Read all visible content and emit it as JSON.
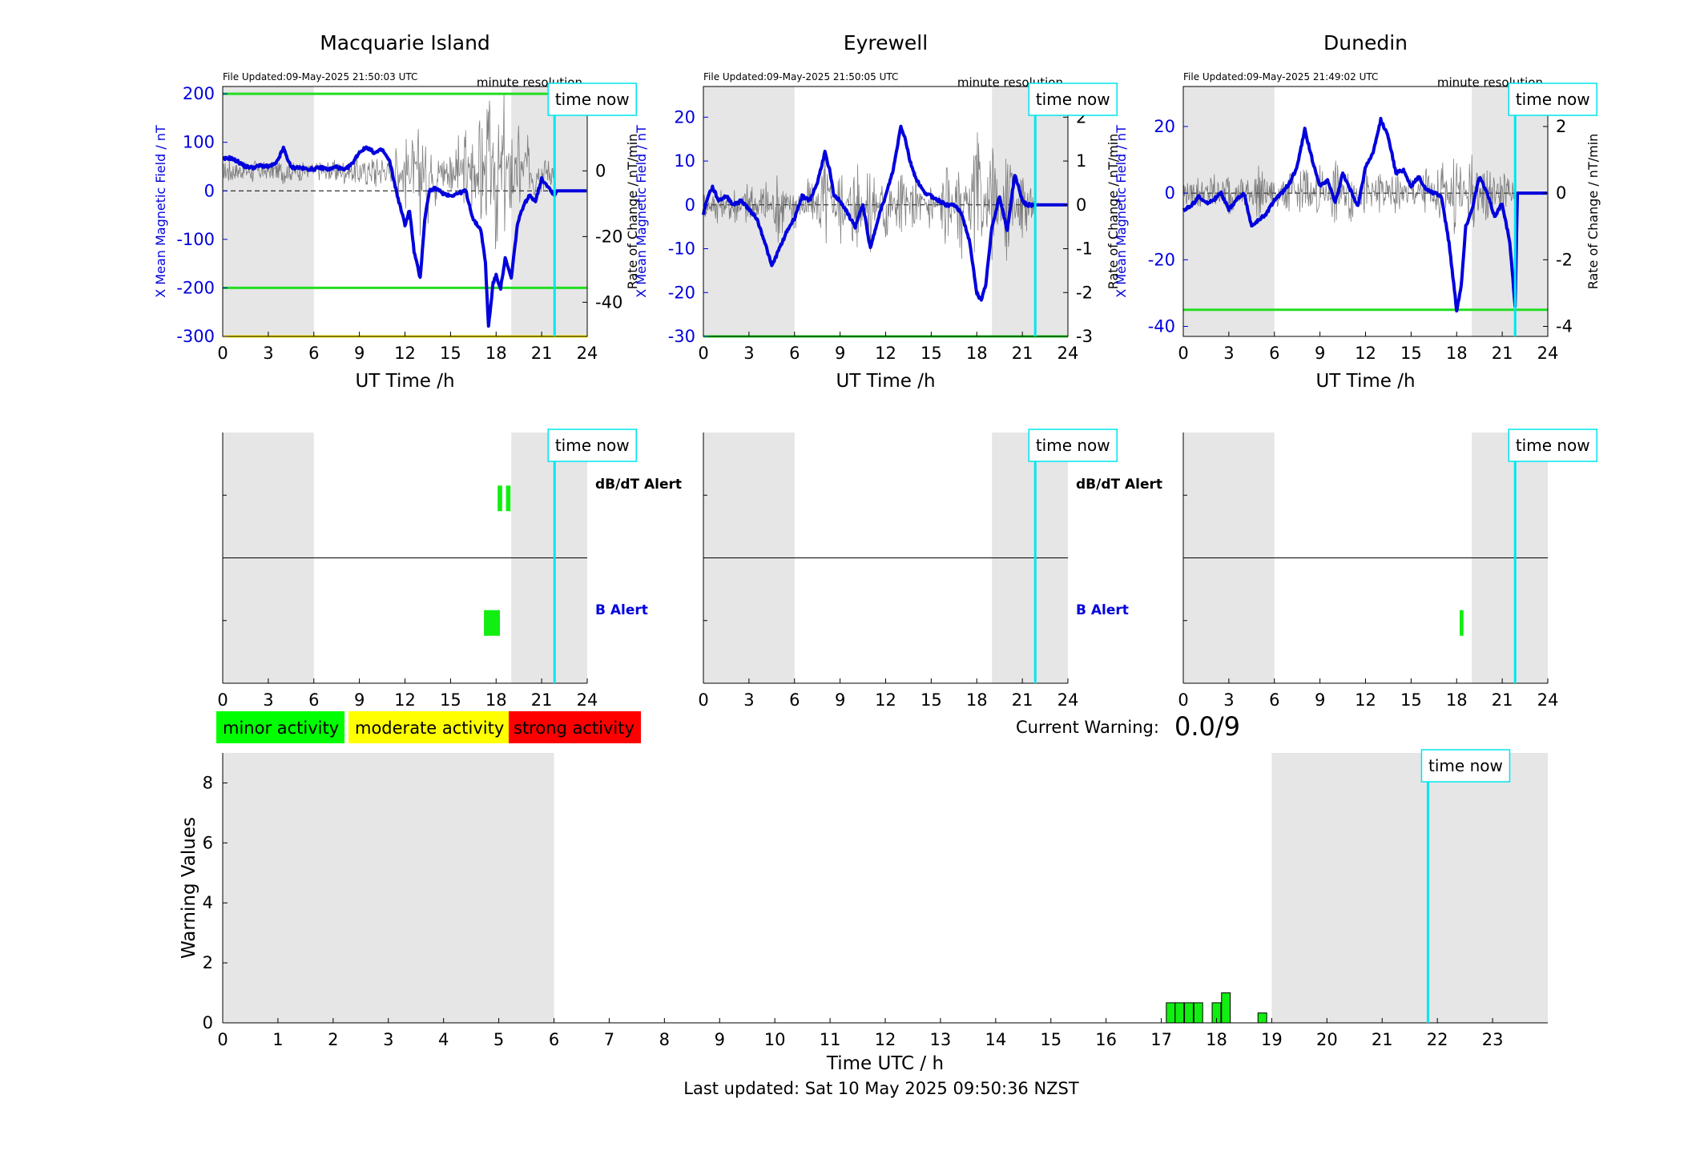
{
  "figure": {
    "legend": {
      "minor": {
        "label": "minor activity",
        "color": "#00ff00"
      },
      "moderate": {
        "label": "moderate activity",
        "color": "#ffff00"
      },
      "strong": {
        "label": "strong activity",
        "color": "#ff0000"
      }
    },
    "current_warning_label": "Current Warning:",
    "current_warning_value": "0.0/9",
    "last_updated": "Last updated: Sat 10 May 2025 09:50:36 NZST",
    "time_now_label": "time now",
    "colors": {
      "field": "#0000dd",
      "rate": "#555555",
      "threshold": "#22dd22",
      "time_now": "#00e5ee",
      "shade": "#e6e6e6",
      "bar": "#11ee11"
    }
  },
  "chart_data": [
    {
      "panel": "Macquarie Island",
      "type": "line",
      "title": "Macquarie Island",
      "file_updated": "File Updated:09-May-2025 21:50:03 UTC",
      "resolution": "minute resolution",
      "xlabel": "UT Time /h",
      "ylabel": "X Mean Magnetic Field / nT",
      "ylabel_right": "Rate of Change / nT/min",
      "xlim": [
        0,
        24
      ],
      "xticks": [
        0,
        3,
        6,
        9,
        12,
        15,
        18,
        21,
        24
      ],
      "ylim": [
        -300,
        215
      ],
      "yticks": [
        200,
        100,
        0,
        -100,
        -200,
        -300
      ],
      "ylim_right": [
        -50.4,
        25.7
      ],
      "yticks_right": [
        20,
        0,
        -20,
        -40
      ],
      "thresholds": [
        {
          "y": 200,
          "color": "#22dd22"
        },
        {
          "y": -200,
          "color": "#22dd22"
        },
        {
          "y": -300,
          "color": "#ffee00"
        }
      ],
      "shaded": [
        [
          0,
          6
        ],
        [
          19,
          24
        ]
      ],
      "time_now": 21.85,
      "series": [
        {
          "role": "field",
          "x": [
            0,
            0.5,
            1,
            1.5,
            2,
            2.5,
            3,
            3.5,
            4,
            4.5,
            5,
            5.5,
            6,
            6.5,
            7,
            7.5,
            8,
            8.5,
            9,
            9.5,
            10,
            10.5,
            11,
            11.5,
            12,
            12.3,
            12.6,
            13,
            13.3,
            13.6,
            14,
            14.5,
            15,
            15.5,
            16,
            16.5,
            17,
            17.3,
            17.5,
            17.8,
            18,
            18.3,
            18.6,
            19,
            19.4,
            19.8,
            20.2,
            20.6,
            21,
            21.4,
            21.85,
            22,
            22.5,
            23,
            23.5,
            24
          ],
          "y": [
            65,
            68,
            60,
            50,
            48,
            52,
            50,
            55,
            88,
            48,
            48,
            45,
            45,
            48,
            44,
            50,
            42,
            55,
            80,
            90,
            78,
            85,
            60,
            -10,
            -70,
            -40,
            -125,
            -180,
            -60,
            0,
            5,
            -5,
            -10,
            -5,
            0,
            -60,
            -80,
            -150,
            -280,
            -190,
            -175,
            -200,
            -140,
            -180,
            -70,
            -30,
            -10,
            -20,
            25,
            10,
            -10,
            0,
            0,
            0,
            0,
            0
          ]
        },
        {
          "role": "rate",
          "x": [
            0,
            0.5,
            1,
            1.5,
            2,
            2.5,
            3,
            3.5,
            4,
            4.5,
            5,
            5.5,
            6,
            6.5,
            7,
            7.5,
            8,
            8.5,
            9,
            9.5,
            10,
            10.5,
            11,
            11.5,
            12,
            12.5,
            13,
            13.5,
            14,
            14.5,
            15,
            15.5,
            16,
            16.5,
            17,
            17.5,
            18,
            18.5,
            19,
            19.5,
            20,
            20.5,
            21,
            21.5,
            21.85
          ],
          "y": [
            0,
            2,
            -1,
            1,
            -2,
            1,
            0,
            -1,
            2,
            -1,
            1,
            0,
            0,
            1,
            -1,
            2,
            -2,
            1,
            3,
            -3,
            5,
            -4,
            3,
            -8,
            12,
            -10,
            18,
            -15,
            10,
            -6,
            8,
            -10,
            14,
            -18,
            22,
            -28,
            30,
            -25,
            20,
            -15,
            12,
            -8,
            6,
            -3,
            0
          ]
        }
      ]
    },
    {
      "panel": "Eyrewell",
      "type": "line",
      "title": "Eyrewell",
      "file_updated": "File Updated:09-May-2025 21:50:05 UTC",
      "resolution": "minute resolution",
      "xlabel": "UT Time /h",
      "ylabel": "X Mean Magnetic Field / nT",
      "ylabel_right": "Rate of Change / nT/min",
      "xlim": [
        0,
        24
      ],
      "xticks": [
        0,
        3,
        6,
        9,
        12,
        15,
        18,
        21,
        24
      ],
      "ylim": [
        -30,
        27
      ],
      "yticks": [
        20,
        10,
        0,
        -10,
        -20,
        -30
      ],
      "ylim_right": [
        -3,
        2.7
      ],
      "yticks_right": [
        2,
        1,
        0,
        -1,
        -2,
        -3
      ],
      "thresholds": [
        {
          "y": -30,
          "color": "#22dd22"
        }
      ],
      "shaded": [
        [
          0,
          6
        ],
        [
          19,
          24
        ]
      ],
      "time_now": 21.85,
      "series": [
        {
          "role": "field",
          "x": [
            0,
            0.3,
            0.6,
            1,
            1.5,
            2,
            2.5,
            3,
            3.5,
            4,
            4.5,
            5,
            5.5,
            6,
            6.5,
            7,
            7.5,
            8,
            8.3,
            8.6,
            9,
            9.5,
            10,
            10.5,
            11,
            11.5,
            12,
            12.5,
            13,
            13.3,
            13.6,
            14,
            14.5,
            15,
            15.5,
            16,
            16.5,
            17,
            17.5,
            18,
            18.3,
            18.6,
            19,
            19.5,
            20,
            20.5,
            21,
            21.3,
            21.85,
            22,
            23,
            24
          ],
          "y": [
            -2,
            2,
            4,
            1,
            2,
            0,
            1,
            -1,
            -3,
            -8,
            -14,
            -10,
            -6,
            -3,
            2,
            1,
            5,
            12,
            8,
            2,
            1,
            -2,
            -5,
            0,
            -10,
            -3,
            2,
            8,
            18,
            15,
            10,
            6,
            3,
            2,
            1,
            0,
            0,
            -2,
            -8,
            -20,
            -22,
            -18,
            -5,
            2,
            -6,
            7,
            1,
            0,
            0,
            0,
            0,
            0
          ]
        },
        {
          "role": "rate",
          "x": [
            0,
            1,
            2,
            3,
            4,
            5,
            6,
            7,
            8,
            9,
            10,
            11,
            12,
            13,
            14,
            15,
            16,
            17,
            18,
            19,
            20,
            21,
            21.85
          ],
          "y": [
            0.2,
            -0.3,
            0.4,
            -0.5,
            0.6,
            -0.8,
            0.5,
            -0.6,
            1.1,
            -0.9,
            1.2,
            -1.0,
            0.9,
            -0.8,
            0.7,
            -0.6,
            0.9,
            -1.1,
            1.6,
            -1.3,
            1.2,
            -0.7,
            0
          ]
        }
      ]
    },
    {
      "panel": "Dunedin",
      "type": "line",
      "title": "Dunedin",
      "file_updated": "File Updated:09-May-2025 21:49:02 UTC",
      "resolution": "minute resolution",
      "xlabel": "UT Time /h",
      "ylabel": "X Mean Magnetic Field / nT",
      "ylabel_right": "Rate of Change / nT/min",
      "xlim": [
        0,
        24
      ],
      "xticks": [
        0,
        3,
        6,
        9,
        12,
        15,
        18,
        21,
        24
      ],
      "ylim": [
        -43,
        32
      ],
      "yticks": [
        20,
        0,
        -20,
        -40
      ],
      "ylim_right": [
        -4.3,
        3.2
      ],
      "yticks_right": [
        2,
        0,
        -2,
        -4
      ],
      "thresholds": [
        {
          "y": -35,
          "color": "#22dd22"
        }
      ],
      "shaded": [
        [
          0,
          6
        ],
        [
          19,
          24
        ]
      ],
      "time_now": 21.85,
      "series": [
        {
          "role": "field",
          "x": [
            0,
            0.5,
            1,
            1.5,
            2,
            2.5,
            3,
            3.5,
            4,
            4.5,
            5,
            5.5,
            6,
            6.5,
            7,
            7.5,
            8,
            8.5,
            9,
            9.5,
            10,
            10.5,
            11,
            11.5,
            12,
            12.5,
            13,
            13.5,
            14,
            14.5,
            15,
            15.5,
            16,
            16.5,
            17,
            17.5,
            18,
            18.3,
            18.6,
            19,
            19.5,
            20,
            20.5,
            21,
            21.5,
            21.85,
            22,
            23,
            24
          ],
          "y": [
            -5,
            -4,
            -1,
            -3,
            -2,
            0,
            -5,
            -2,
            0,
            -10,
            -8,
            -6,
            -2,
            0,
            3,
            8,
            19,
            10,
            2,
            4,
            -3,
            6,
            1,
            -4,
            8,
            12,
            22,
            17,
            6,
            7,
            2,
            5,
            1,
            0,
            -1,
            -15,
            -35,
            -28,
            -10,
            -5,
            5,
            0,
            -7,
            -3,
            -15,
            -34,
            0,
            0,
            0
          ]
        },
        {
          "role": "rate",
          "x": [
            0,
            1,
            2,
            3,
            4,
            5,
            6,
            7,
            8,
            9,
            10,
            11,
            12,
            13,
            14,
            15,
            16,
            17,
            18,
            19,
            20,
            21,
            21.85
          ],
          "y": [
            0.3,
            -0.4,
            0.5,
            -0.6,
            0.5,
            -0.7,
            0.4,
            -0.5,
            0.8,
            -0.7,
            0.9,
            -0.8,
            0.7,
            -0.6,
            0.6,
            -0.5,
            0.7,
            -0.9,
            1.4,
            -1.2,
            1.0,
            -0.6,
            0
          ]
        }
      ]
    },
    {
      "panel": "Macquarie Island alerts",
      "type": "bar",
      "xlim": [
        0,
        24
      ],
      "xticks": [
        0,
        3,
        6,
        9,
        12,
        15,
        18,
        21,
        24
      ],
      "shaded": [
        [
          0,
          6
        ],
        [
          19,
          24
        ]
      ],
      "time_now": 21.85,
      "row_labels": {
        "dbdt": "dB/dT Alert",
        "b": "B Alert"
      },
      "dbdt_alerts": [
        [
          18.1,
          18.4
        ],
        [
          18.65,
          18.95
        ]
      ],
      "b_alerts": [
        [
          17.2,
          18.25
        ]
      ]
    },
    {
      "panel": "Eyrewell alerts",
      "type": "bar",
      "xlim": [
        0,
        24
      ],
      "xticks": [
        0,
        3,
        6,
        9,
        12,
        15,
        18,
        21,
        24
      ],
      "shaded": [
        [
          0,
          6
        ],
        [
          19,
          24
        ]
      ],
      "time_now": 21.85,
      "row_labels": {
        "dbdt": "dB/dT Alert",
        "b": "B Alert"
      },
      "dbdt_alerts": [],
      "b_alerts": []
    },
    {
      "panel": "Dunedin alerts",
      "type": "bar",
      "xlim": [
        0,
        24
      ],
      "xticks": [
        0,
        3,
        6,
        9,
        12,
        15,
        18,
        21,
        24
      ],
      "shaded": [
        [
          0,
          6
        ],
        [
          19,
          24
        ]
      ],
      "time_now": 21.85,
      "row_labels": {
        "dbdt": "",
        "b": ""
      },
      "dbdt_alerts": [],
      "b_alerts": [
        [
          18.2,
          18.45
        ]
      ]
    },
    {
      "panel": "Warning values",
      "type": "bar",
      "xlabel": "Time UTC / h",
      "ylabel": "Warning Values",
      "xlim": [
        0,
        24
      ],
      "xticks": [
        0,
        1,
        2,
        3,
        4,
        5,
        6,
        7,
        8,
        9,
        10,
        11,
        12,
        13,
        14,
        15,
        16,
        17,
        18,
        19,
        20,
        21,
        22,
        23
      ],
      "ylim": [
        0,
        9
      ],
      "yticks": [
        0,
        2,
        4,
        6,
        8
      ],
      "shaded": [
        [
          0,
          6
        ],
        [
          19,
          24
        ]
      ],
      "time_now": 21.83,
      "bars": [
        {
          "x": 17.17,
          "value": 0.67
        },
        {
          "x": 17.33,
          "value": 0.67
        },
        {
          "x": 17.5,
          "value": 0.67
        },
        {
          "x": 17.67,
          "value": 0.67
        },
        {
          "x": 18.0,
          "value": 0.67
        },
        {
          "x": 18.17,
          "value": 1.0
        },
        {
          "x": 18.83,
          "value": 0.33
        }
      ]
    }
  ]
}
